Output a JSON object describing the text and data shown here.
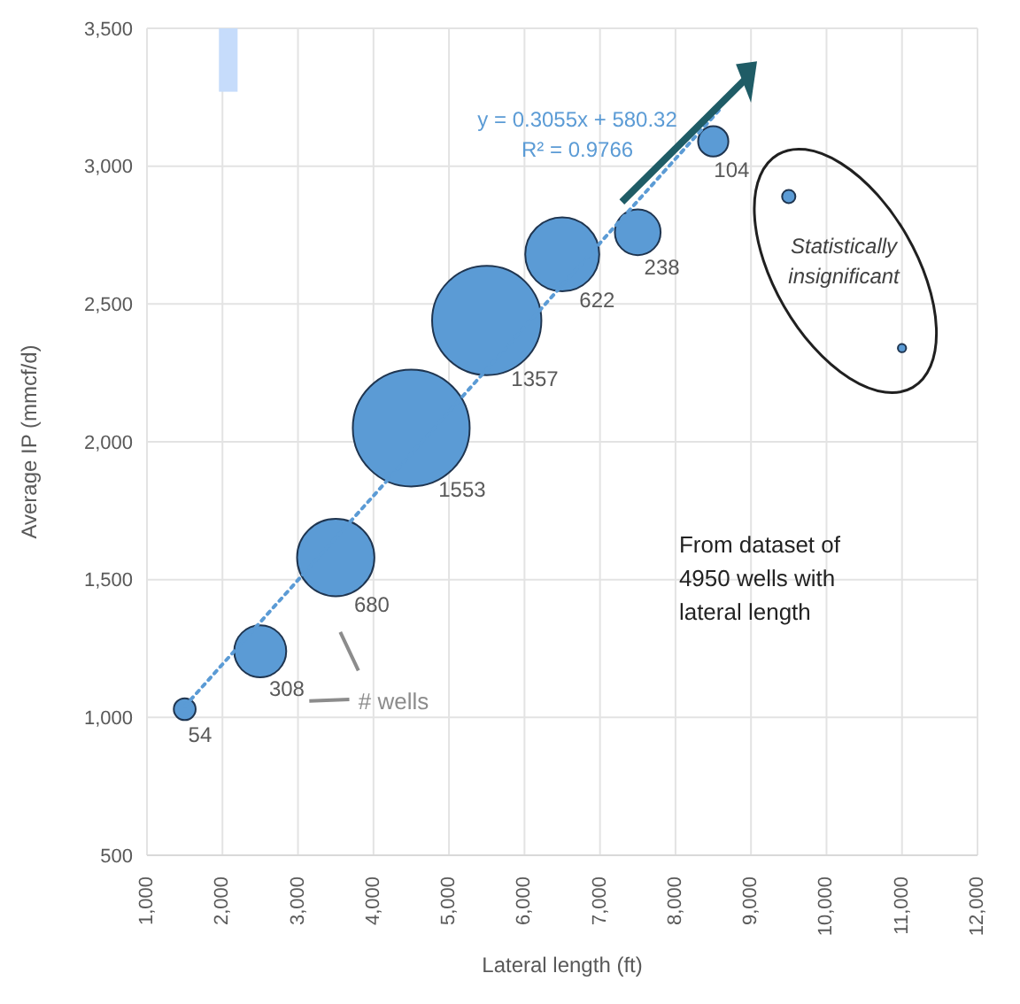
{
  "chart_data": {
    "type": "bubble",
    "xlabel": "Lateral length (ft)",
    "ylabel": "Average IP (mmcf/d)",
    "xlim": [
      1000,
      12000
    ],
    "xticks": [
      {
        "value": 1000,
        "label": "1,000"
      },
      {
        "value": 2000,
        "label": "2,000"
      },
      {
        "value": 3000,
        "label": "3,000"
      },
      {
        "value": 4000,
        "label": "4,000"
      },
      {
        "value": 5000,
        "label": "5,000"
      },
      {
        "value": 6000,
        "label": "6,000"
      },
      {
        "value": 7000,
        "label": "7,000"
      },
      {
        "value": 8000,
        "label": "8,000"
      },
      {
        "value": 9000,
        "label": "9,000"
      },
      {
        "value": 10000,
        "label": "10,000"
      },
      {
        "value": 11000,
        "label": "11,000"
      },
      {
        "value": 12000,
        "label": "12,000"
      }
    ],
    "ylim": [
      500,
      3500
    ],
    "yticks": [
      500,
      {
        "value": 1000,
        "label": "1,000"
      },
      {
        "value": 1500,
        "label": "1,500"
      },
      {
        "value": 2000,
        "label": "2,000"
      },
      {
        "value": 2500,
        "label": "2,500"
      },
      {
        "value": 3000,
        "label": "3,000"
      },
      {
        "value": 3500,
        "label": "3,500"
      }
    ],
    "grid": true,
    "series": [
      {
        "color": "#5b9bd5",
        "x": [
          1500,
          2500,
          3500,
          4500,
          5500,
          6500,
          7500,
          8500,
          9500,
          11000
        ],
        "values": [
          1030,
          1240,
          1580,
          2050,
          2440,
          2680,
          2760,
          3090,
          2890,
          2340
        ],
        "sizes": [
          0.035,
          0.198,
          0.438,
          1,
          0.874,
          0.401,
          0.153,
          0.067,
          0.013,
          0.005
        ]
      },
      {
        "type": "line",
        "color": "#5b9bd5",
        "line_style": "dotted",
        "x": [
          1500,
          8600
        ],
        "values": [
          1040,
          3210
        ]
      }
    ],
    "annotations": [
      "y = 0.3055x + 580.32",
      "R² = 0.9766",
      "Statistically insignificant",
      "# wells",
      "From dataset of 4950 wells with lateral length",
      {
        "text": "54",
        "x": 1500,
        "y": 1030
      },
      {
        "text": "308",
        "x": 2500,
        "y": 1240
      },
      {
        "text": "680",
        "x": 3500,
        "y": 1580
      },
      {
        "text": "1553",
        "x": 4500,
        "y": 2050
      },
      {
        "text": "1357",
        "x": 5500,
        "y": 2440
      },
      {
        "text": "622",
        "x": 6500,
        "y": 2680
      },
      {
        "text": "238",
        "x": 7500,
        "y": 2760
      },
      {
        "text": "104",
        "x": 8500,
        "y": 3090
      }
    ]
  }
}
